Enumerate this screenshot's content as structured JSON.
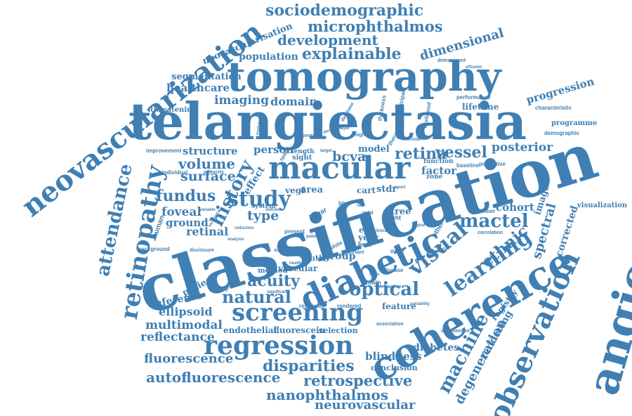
{
  "colors": {
    "word": "#3f7fb3",
    "background": "#ffffff"
  },
  "words": {
    "neovascularization": "neovascularization",
    "sociodemographic": "sociodemographic",
    "microphthalmos": "microphthalmos",
    "neovascularisation": "neovascularisation",
    "development": "development",
    "dimensional": "dimensional",
    "population": "population",
    "explainable": "explainable",
    "tomography": "tomography",
    "segmentation": "segmentation",
    "healthcare": "healthcare",
    "telangiectasia": "telangiectasia",
    "imaging": "imaging",
    "domain": "domain",
    "progression": "progression",
    "lifetime": "lifetime",
    "programme": "programme",
    "threatening": "threatening",
    "angiography": "angiography",
    "classification": "classification",
    "macular": "macular",
    "retinopathy": "retinopathy",
    "attendance": "attendance",
    "history": "history",
    "study": "study",
    "fundus": "fundus",
    "volume": "volume",
    "surface": "surface",
    "structure": "structure",
    "person": "person",
    "bcva": "bcva",
    "retina": "retina",
    "vessel": "vessel",
    "posterior": "posterior",
    "model": "model",
    "factor": "factor",
    "cohort": "cohort",
    "mactel": "mactel",
    "visual": "visual",
    "ethnic": "ethnic",
    "spectral": "spectral",
    "image": "image",
    "corrected": "corrected",
    "visualization": "visualization",
    "foveal": "foveal",
    "ground": "ground",
    "retinal": "retinal",
    "type": "type",
    "area": "area",
    "diabetic": "diabetic",
    "learning": "learning",
    "optical": "optical",
    "acuity": "acuity",
    "natural": "natural",
    "coherence": "coherence",
    "observation": "observation",
    "screening": "screening",
    "machine": "machine",
    "reference": "reference",
    "patient": "patient",
    "ellipsoid": "ellipsoid",
    "multimodal": "multimodal",
    "reflectance": "reflectance",
    "regression": "regression",
    "fluorescence": "fluorescence",
    "disparities": "disparities",
    "autofluorescence": "autofluorescence",
    "retrospective": "retrospective",
    "nanophthalmos": "nanophthalmos",
    "neurovascular": "neurovascular",
    "degeneration": "degeneration",
    "rendering": "rendering",
    "registry": "registry",
    "diabetes": "diabetes",
    "blindness": "blindness",
    "conclusion": "conclusion",
    "endothelial": "endothelial",
    "fluorescein": "fluorescein",
    "selection": "selection",
    "feature": "feature",
    "vascular": "vascular",
    "group": "group",
    "truth": "truth",
    "method": "method",
    "vegf": "vegf",
    "cart": "cart",
    "stdr": "stdr",
    "tree": "tree",
    "year": "year",
    "eye": "eye",
    "sight": "sight",
    "function": "function",
    "zone": "zone",
    "length": "length",
    "effect": "effect",
    "system": "system",
    "improvement": "improvement",
    "individual": "individual",
    "ethnicity": "ethnicity",
    "human": "human",
    "background": "background",
    "disclosure": "disclosure",
    "spatial": "spatial",
    "severity": "severity",
    "higher": "higher",
    "database": "database",
    "thickness": "thickness",
    "participant": "participant",
    "likelihood": "likelihood",
    "therapy": "therapy",
    "performance": "performance",
    "characteristic": "characteristic",
    "demographic": "demographic",
    "determinant": "determinant",
    "baseline": "baseline",
    "predictive": "predictive",
    "number": "number",
    "correlation": "correlation",
    "disease": "disease",
    "growth": "growth",
    "response": "response",
    "rendered": "rendered",
    "association": "association",
    "involvement": "involvement",
    "significant": "significant",
    "light": "light",
    "best": "best",
    "other": "other",
    "important": "important",
    "present": "present",
    "reduction": "reduction",
    "variable": "variable",
    "choroidal": "choroidal",
    "incidence": "incidence",
    "analysis": "analysis",
    "outcome": "outcome",
    "linear": "linear",
    "axial": "axial",
    "layer": "layer",
    "data": "data",
    "blue": "blue",
    "white": "white",
    "pigment": "pigment",
    "refractive": "refractive",
    "effusion": "effusion",
    "greater": "greater",
    "duration": "duration",
    "depression": "depression",
    "evolution": "evolution",
    "parameter": "parameter",
    "target": "target",
    "signal": "signal",
    "clinical": "clinical",
    "report": "report",
    "nhos": "nhos",
    "raw": "raw",
    "pattern": "pattern",
    "variability": "variability",
    "healthy": "healthy",
    "month": "month"
  }
}
